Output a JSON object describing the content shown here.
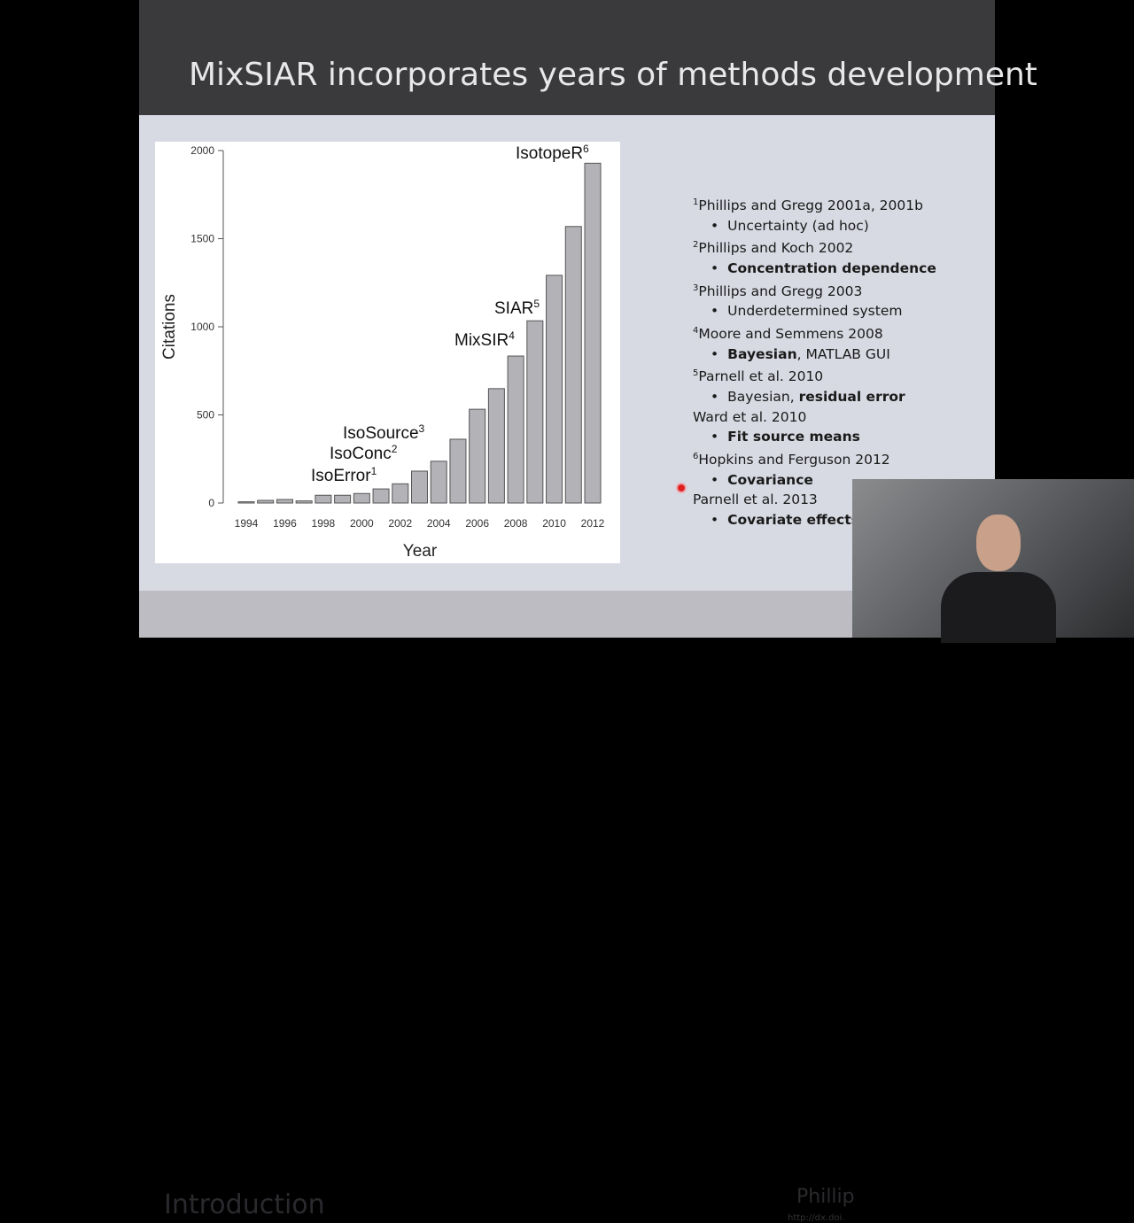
{
  "slide": {
    "title": "MixSIAR incorporates years of methods development",
    "section": "Introduction",
    "citation_partial": "Phillip",
    "doi_partial": "http://dx.doi."
  },
  "references": [
    {
      "sup": "1",
      "text": "Phillips and Gregg 2001a, 2001b",
      "bullet": [
        {
          "t": "Uncertainty (ad hoc)",
          "b": false
        }
      ]
    },
    {
      "sup": "2",
      "text": "Phillips and Koch 2002",
      "bullet": [
        {
          "t": "Concentration dependence",
          "b": true
        }
      ]
    },
    {
      "sup": "3",
      "text": "Phillips and Gregg 2003",
      "bullet": [
        {
          "t": "Underdetermined system",
          "b": false
        }
      ]
    },
    {
      "sup": "4",
      "text": "Moore and Semmens 2008",
      "bullet": [
        {
          "t": "Bayesian",
          "b": true
        },
        {
          "t": ", MATLAB GUI",
          "b": false
        }
      ]
    },
    {
      "sup": "5",
      "text": "Parnell et al. 2010",
      "bullet": [
        {
          "t": "Bayesian, ",
          "b": false
        },
        {
          "t": "residual error",
          "b": true
        }
      ]
    },
    {
      "sup": "",
      "text": "Ward et al. 2010",
      "bullet": [
        {
          "t": "Fit source means",
          "b": true
        }
      ]
    },
    {
      "sup": "6",
      "text": "Hopkins and Ferguson 2012",
      "bullet": [
        {
          "t": "Covariance",
          "b": true
        }
      ]
    },
    {
      "sup": "",
      "text": "Parnell et al. 2013",
      "bullet": [
        {
          "t": "Covariate effects",
          "b": true
        }
      ]
    }
  ],
  "chart_data": {
    "type": "bar",
    "xlabel": "Year",
    "ylabel": "Citations",
    "ylim": [
      0,
      2000
    ],
    "yticks": [
      0,
      500,
      1000,
      1500,
      2000
    ],
    "xtick_labels": [
      "1994",
      "1996",
      "1998",
      "2000",
      "2002",
      "2004",
      "2006",
      "2008",
      "2010",
      "2012"
    ],
    "categories": [
      1994,
      1995,
      1996,
      1997,
      1998,
      1999,
      2000,
      2001,
      2002,
      2003,
      2004,
      2005,
      2006,
      2007,
      2008,
      2009,
      2010,
      2011,
      2012
    ],
    "values": [
      7,
      15,
      20,
      12,
      44,
      44,
      54,
      80,
      109,
      181,
      237,
      362,
      532,
      649,
      834,
      1034,
      1292,
      1569,
      1928
    ],
    "bar_color": "#b3b2b7",
    "annotations": [
      {
        "label": "IsoError",
        "sup": "1",
        "year": 2001
      },
      {
        "label": "IsoConc",
        "sup": "2",
        "year": 2002
      },
      {
        "label": "IsoSource",
        "sup": "3",
        "year": 2003
      },
      {
        "label": "MixSIR",
        "sup": "4",
        "year": 2008
      },
      {
        "label": "SIAR",
        "sup": "5",
        "year": 2010
      },
      {
        "label": "IsotopeR",
        "sup": "6",
        "year": 2012
      }
    ]
  }
}
